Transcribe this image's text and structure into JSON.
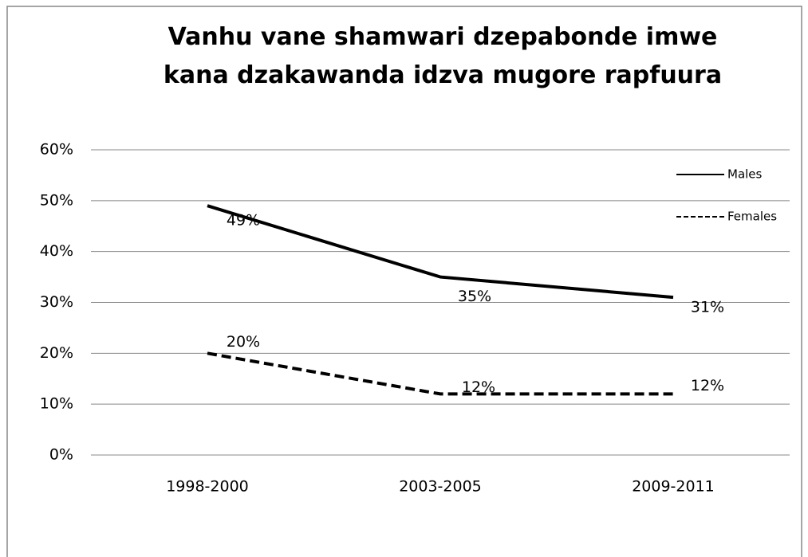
{
  "chart_data": {
    "type": "line",
    "title": "Vanhu vane shamwari dzepabonde imwe kana dzakawanda idzva mugore rapfuura",
    "categories": [
      "1998-2000",
      "2003-2005",
      "2009-2011"
    ],
    "series": [
      {
        "name": "Males",
        "color": "#000000",
        "dash": "solid",
        "values": [
          49,
          35,
          31
        ],
        "value_labels": [
          "49%",
          "35%",
          "31%"
        ]
      },
      {
        "name": "Females",
        "color": "#000000",
        "dash": "dashed",
        "values": [
          20,
          12,
          12
        ],
        "value_labels": [
          "20%",
          "12%",
          "12%"
        ]
      }
    ],
    "ylim": [
      0,
      60
    ],
    "yticks": [
      {
        "value": 0,
        "label": "0%"
      },
      {
        "value": 10,
        "label": "10%"
      },
      {
        "value": 20,
        "label": "20%"
      },
      {
        "value": 30,
        "label": "30%"
      },
      {
        "value": 40,
        "label": "40%"
      },
      {
        "value": 50,
        "label": "50%"
      },
      {
        "value": 60,
        "label": "60%"
      }
    ],
    "grid": true,
    "legend": "upper right"
  }
}
